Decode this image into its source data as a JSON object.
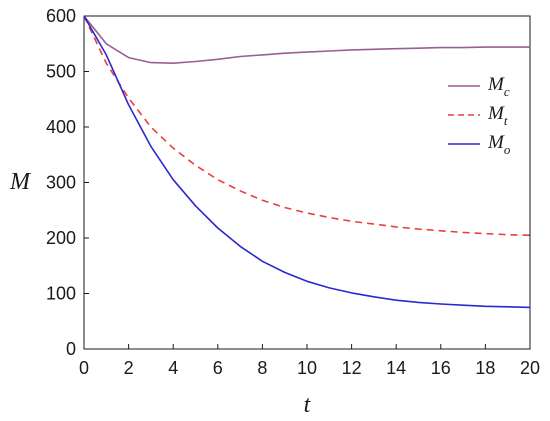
{
  "chart_data": {
    "type": "line",
    "xlabel": "t",
    "ylabel": "M",
    "xlim": [
      0,
      20
    ],
    "ylim": [
      0,
      600
    ],
    "xticks": [
      0,
      2,
      4,
      6,
      8,
      10,
      12,
      14,
      16,
      18,
      20
    ],
    "yticks": [
      0,
      100,
      200,
      300,
      400,
      500,
      600
    ],
    "grid": false,
    "legend_position": "top-right",
    "series": [
      {
        "name": "M",
        "subscript": "c",
        "color": "#9a5e96",
        "style": "solid",
        "x": [
          0,
          1,
          2,
          3,
          4,
          5,
          6,
          7,
          8,
          9,
          10,
          11,
          12,
          13,
          14,
          15,
          16,
          17,
          18,
          19,
          20
        ],
        "y": [
          600,
          550,
          525,
          516,
          515,
          518,
          522,
          527,
          530,
          533,
          535,
          537,
          539,
          540,
          541,
          542,
          543,
          543,
          544,
          544,
          544
        ]
      },
      {
        "name": "M",
        "subscript": "t",
        "color": "#e8403c",
        "style": "dashed",
        "x": [
          0,
          1,
          2,
          3,
          4,
          5,
          6,
          7,
          8,
          9,
          10,
          11,
          12,
          13,
          14,
          15,
          16,
          17,
          18,
          19,
          20
        ],
        "y": [
          600,
          515,
          452,
          400,
          362,
          331,
          305,
          285,
          268,
          255,
          245,
          237,
          230,
          225,
          220,
          216,
          213,
          210,
          208,
          206,
          205
        ]
      },
      {
        "name": "M",
        "subscript": "o",
        "color": "#2a2ad0",
        "style": "solid",
        "x": [
          0,
          1,
          2,
          3,
          4,
          5,
          6,
          7,
          8,
          9,
          10,
          11,
          12,
          13,
          14,
          15,
          16,
          17,
          18,
          19,
          20
        ],
        "y": [
          600,
          530,
          440,
          365,
          305,
          258,
          218,
          185,
          158,
          138,
          122,
          110,
          101,
          94,
          88,
          84,
          81,
          79,
          77,
          76,
          75
        ]
      }
    ]
  }
}
